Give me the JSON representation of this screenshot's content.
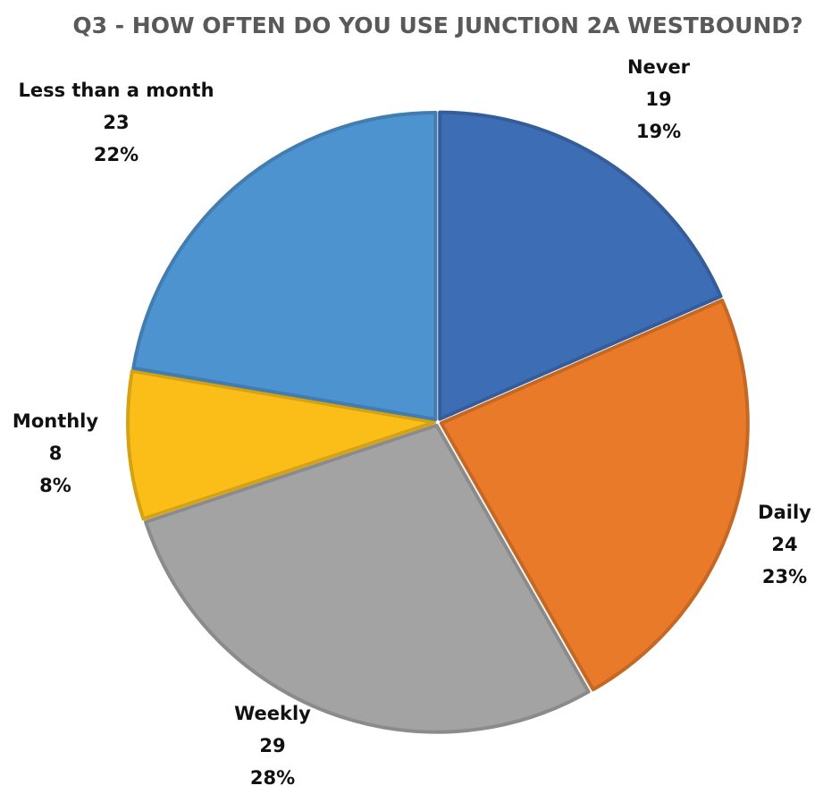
{
  "chart_data": {
    "type": "pie",
    "title": "Q3 - HOW OFTEN DO YOU USE JUNCTION 2A WESTBOUND?",
    "categories": [
      "Never",
      "Daily",
      "Weekly",
      "Monthly",
      "Less than a month"
    ],
    "values": [
      19,
      24,
      29,
      8,
      23
    ],
    "percents": [
      19,
      23,
      28,
      8,
      22
    ],
    "percent_labels": [
      "19%",
      "23%",
      "28%",
      "8%",
      "22%"
    ],
    "colors": [
      "#3d6db5",
      "#e87a2a",
      "#a3a3a3",
      "#fbbe18",
      "#4d93cf"
    ]
  }
}
